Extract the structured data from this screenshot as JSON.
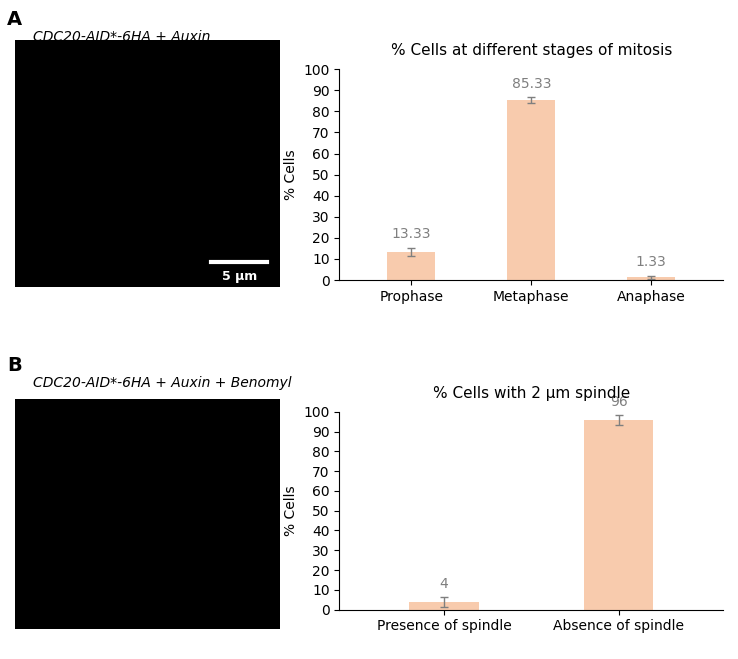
{
  "chart_data": [
    {
      "type": "bar",
      "panel": "A",
      "image_caption": "CDC20-AID*-6HA + Auxin",
      "scale_bar_label": "5 µm",
      "title": "% Cells at different stages of mitosis",
      "y_label": "% Cells",
      "categories": [
        "Prophase",
        "Metaphase",
        "Anaphase"
      ],
      "values": [
        13.33,
        85.33,
        1.33
      ],
      "error": [
        2.0,
        1.3,
        0.7
      ],
      "color": "#f8cbad",
      "data_labels": true,
      "ylim": [
        0,
        100
      ],
      "yticks": [
        0,
        10,
        20,
        30,
        40,
        50,
        60,
        70,
        80,
        90,
        100
      ],
      "grid": false
    },
    {
      "type": "bar",
      "panel": "B",
      "image_caption": "CDC20-AID*-6HA + Auxin + Benomyl",
      "title": "% Cells with 2 µm spindle",
      "y_label": "% Cells",
      "categories": [
        "Presence of spindle",
        "Absence of spindle"
      ],
      "values": [
        4,
        96
      ],
      "error": [
        2.5,
        2.5
      ],
      "color": "#f8cbad",
      "data_labels": true,
      "ylim": [
        0,
        100
      ],
      "yticks": [
        0,
        10,
        20,
        30,
        40,
        50,
        60,
        70,
        80,
        90,
        100
      ],
      "grid": false
    }
  ]
}
